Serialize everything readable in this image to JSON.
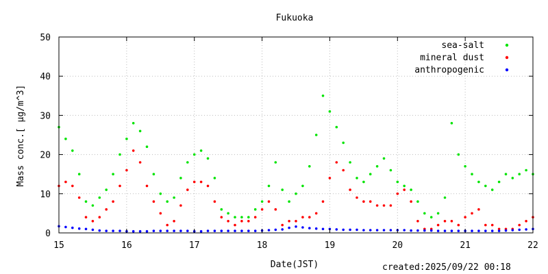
{
  "footer": {
    "created": "created:2025/09/22 00:18"
  },
  "colors": {
    "sea_salt": "#00e400",
    "mineral_dust": "#ff0000",
    "anthropogenic": "#0000ff",
    "frame": "#000000"
  },
  "chart_data": {
    "type": "scatter",
    "title": "Fukuoka",
    "xlabel": "Date(JST)",
    "ylabel_text": "Mass conc.[ μg/m^3]",
    "xlim": [
      15,
      22
    ],
    "ylim": [
      0,
      50
    ],
    "xticks": [
      "15",
      "16",
      "17",
      "18",
      "19",
      "20",
      "21",
      "22"
    ],
    "yticks": [
      "0",
      "10",
      "20",
      "30",
      "40",
      "50"
    ],
    "legend_position": "top-right",
    "series": [
      {
        "name": "sea-salt",
        "key": "sea_salt",
        "points": [
          [
            15.0,
            27
          ],
          [
            15.1,
            24
          ],
          [
            15.2,
            21
          ],
          [
            15.3,
            15
          ],
          [
            15.4,
            8
          ],
          [
            15.5,
            7
          ],
          [
            15.6,
            9
          ],
          [
            15.7,
            11
          ],
          [
            15.8,
            15
          ],
          [
            15.9,
            20
          ],
          [
            16.0,
            24
          ],
          [
            16.1,
            28
          ],
          [
            16.2,
            26
          ],
          [
            16.3,
            22
          ],
          [
            16.4,
            15
          ],
          [
            16.5,
            10
          ],
          [
            16.6,
            8
          ],
          [
            16.7,
            9
          ],
          [
            16.8,
            14
          ],
          [
            16.9,
            18
          ],
          [
            17.0,
            20
          ],
          [
            17.1,
            21
          ],
          [
            17.2,
            19
          ],
          [
            17.3,
            14
          ],
          [
            17.4,
            6
          ],
          [
            17.5,
            5
          ],
          [
            17.6,
            4
          ],
          [
            17.7,
            4
          ],
          [
            17.8,
            4
          ],
          [
            17.9,
            6
          ],
          [
            18.0,
            8
          ],
          [
            18.1,
            12
          ],
          [
            18.2,
            18
          ],
          [
            18.3,
            11
          ],
          [
            18.4,
            8
          ],
          [
            18.5,
            10
          ],
          [
            18.6,
            12
          ],
          [
            18.7,
            17
          ],
          [
            18.8,
            25
          ],
          [
            18.9,
            35
          ],
          [
            19.0,
            31
          ],
          [
            19.1,
            27
          ],
          [
            19.2,
            23
          ],
          [
            19.3,
            18
          ],
          [
            19.4,
            14
          ],
          [
            19.5,
            13
          ],
          [
            19.6,
            15
          ],
          [
            19.7,
            17
          ],
          [
            19.8,
            19
          ],
          [
            19.9,
            16
          ],
          [
            20.0,
            13
          ],
          [
            20.1,
            12
          ],
          [
            20.2,
            11
          ],
          [
            20.3,
            8
          ],
          [
            20.4,
            5
          ],
          [
            20.5,
            4
          ],
          [
            20.6,
            5
          ],
          [
            20.7,
            9
          ],
          [
            20.8,
            28
          ],
          [
            20.9,
            20
          ],
          [
            21.0,
            17
          ],
          [
            21.1,
            15
          ],
          [
            21.2,
            13
          ],
          [
            21.3,
            12
          ],
          [
            21.4,
            11
          ],
          [
            21.5,
            13
          ],
          [
            21.6,
            15
          ],
          [
            21.7,
            14
          ],
          [
            21.8,
            15
          ],
          [
            21.9,
            16
          ],
          [
            22.0,
            15
          ]
        ]
      },
      {
        "name": "mineral dust",
        "key": "mineral_dust",
        "points": [
          [
            15.0,
            12
          ],
          [
            15.1,
            13
          ],
          [
            15.2,
            12
          ],
          [
            15.3,
            9
          ],
          [
            15.4,
            4
          ],
          [
            15.5,
            3
          ],
          [
            15.6,
            4
          ],
          [
            15.7,
            6
          ],
          [
            15.8,
            8
          ],
          [
            15.9,
            12
          ],
          [
            16.0,
            16
          ],
          [
            16.1,
            21
          ],
          [
            16.2,
            18
          ],
          [
            16.3,
            12
          ],
          [
            16.4,
            8
          ],
          [
            16.5,
            5
          ],
          [
            16.6,
            2
          ],
          [
            16.7,
            3
          ],
          [
            16.8,
            7
          ],
          [
            16.9,
            11
          ],
          [
            17.0,
            13
          ],
          [
            17.1,
            13
          ],
          [
            17.2,
            12
          ],
          [
            17.3,
            8
          ],
          [
            17.4,
            4
          ],
          [
            17.5,
            3
          ],
          [
            17.6,
            2
          ],
          [
            17.7,
            3
          ],
          [
            17.8,
            3
          ],
          [
            17.9,
            4
          ],
          [
            18.0,
            6
          ],
          [
            18.1,
            8
          ],
          [
            18.2,
            6
          ],
          [
            18.3,
            2
          ],
          [
            18.4,
            3
          ],
          [
            18.5,
            3
          ],
          [
            18.6,
            4
          ],
          [
            18.7,
            4
          ],
          [
            18.8,
            5
          ],
          [
            18.9,
            8
          ],
          [
            19.0,
            14
          ],
          [
            19.1,
            18
          ],
          [
            19.2,
            16
          ],
          [
            19.3,
            11
          ],
          [
            19.4,
            9
          ],
          [
            19.5,
            8
          ],
          [
            19.6,
            8
          ],
          [
            19.7,
            7
          ],
          [
            19.8,
            7
          ],
          [
            19.9,
            7
          ],
          [
            20.0,
            10
          ],
          [
            20.1,
            11
          ],
          [
            20.2,
            8
          ],
          [
            20.3,
            3
          ],
          [
            20.4,
            1
          ],
          [
            20.5,
            1
          ],
          [
            20.6,
            2
          ],
          [
            20.7,
            3
          ],
          [
            20.8,
            3
          ],
          [
            20.9,
            2
          ],
          [
            21.0,
            4
          ],
          [
            21.1,
            5
          ],
          [
            21.2,
            6
          ],
          [
            21.3,
            2
          ],
          [
            21.4,
            2
          ],
          [
            21.5,
            1
          ],
          [
            21.6,
            1
          ],
          [
            21.7,
            1
          ],
          [
            21.8,
            2
          ],
          [
            21.9,
            3
          ],
          [
            22.0,
            4
          ]
        ]
      },
      {
        "name": "anthropogenic",
        "key": "anthropogenic",
        "points": [
          [
            15.0,
            1.7
          ],
          [
            15.1,
            1.5
          ],
          [
            15.2,
            1.3
          ],
          [
            15.3,
            1.1
          ],
          [
            15.4,
            1.0
          ],
          [
            15.5,
            0.8
          ],
          [
            15.6,
            0.6
          ],
          [
            15.7,
            0.5
          ],
          [
            15.8,
            0.5
          ],
          [
            15.9,
            0.5
          ],
          [
            16.0,
            0.4
          ],
          [
            16.1,
            0.4
          ],
          [
            16.2,
            0.4
          ],
          [
            16.3,
            0.4
          ],
          [
            16.4,
            0.5
          ],
          [
            16.5,
            0.5
          ],
          [
            16.6,
            0.5
          ],
          [
            16.7,
            0.5
          ],
          [
            16.8,
            0.5
          ],
          [
            16.9,
            0.5
          ],
          [
            17.0,
            0.4
          ],
          [
            17.1,
            0.4
          ],
          [
            17.2,
            0.5
          ],
          [
            17.3,
            0.5
          ],
          [
            17.4,
            0.5
          ],
          [
            17.5,
            0.5
          ],
          [
            17.6,
            0.5
          ],
          [
            17.7,
            0.5
          ],
          [
            17.8,
            0.5
          ],
          [
            17.9,
            0.5
          ],
          [
            18.0,
            0.6
          ],
          [
            18.1,
            0.7
          ],
          [
            18.2,
            0.8
          ],
          [
            18.3,
            0.9
          ],
          [
            18.4,
            1.3
          ],
          [
            18.5,
            1.6
          ],
          [
            18.6,
            1.4
          ],
          [
            18.7,
            1.2
          ],
          [
            18.8,
            1.1
          ],
          [
            18.9,
            1.0
          ],
          [
            19.0,
            1.0
          ],
          [
            19.1,
            0.9
          ],
          [
            19.2,
            0.8
          ],
          [
            19.3,
            0.8
          ],
          [
            19.4,
            0.8
          ],
          [
            19.5,
            0.7
          ],
          [
            19.6,
            0.7
          ],
          [
            19.7,
            0.7
          ],
          [
            19.8,
            0.7
          ],
          [
            19.9,
            0.7
          ],
          [
            20.0,
            0.7
          ],
          [
            20.1,
            0.7
          ],
          [
            20.2,
            0.6
          ],
          [
            20.3,
            0.6
          ],
          [
            20.4,
            0.6
          ],
          [
            20.5,
            0.6
          ],
          [
            20.6,
            0.5
          ],
          [
            20.7,
            0.5
          ],
          [
            20.8,
            0.5
          ],
          [
            20.9,
            0.5
          ],
          [
            21.0,
            0.5
          ],
          [
            21.1,
            0.5
          ],
          [
            21.2,
            0.5
          ],
          [
            21.3,
            0.5
          ],
          [
            21.4,
            0.5
          ],
          [
            21.5,
            0.5
          ],
          [
            21.6,
            0.6
          ],
          [
            21.7,
            0.7
          ],
          [
            21.8,
            0.8
          ],
          [
            21.9,
            0.9
          ],
          [
            22.0,
            1.0
          ]
        ]
      }
    ]
  }
}
